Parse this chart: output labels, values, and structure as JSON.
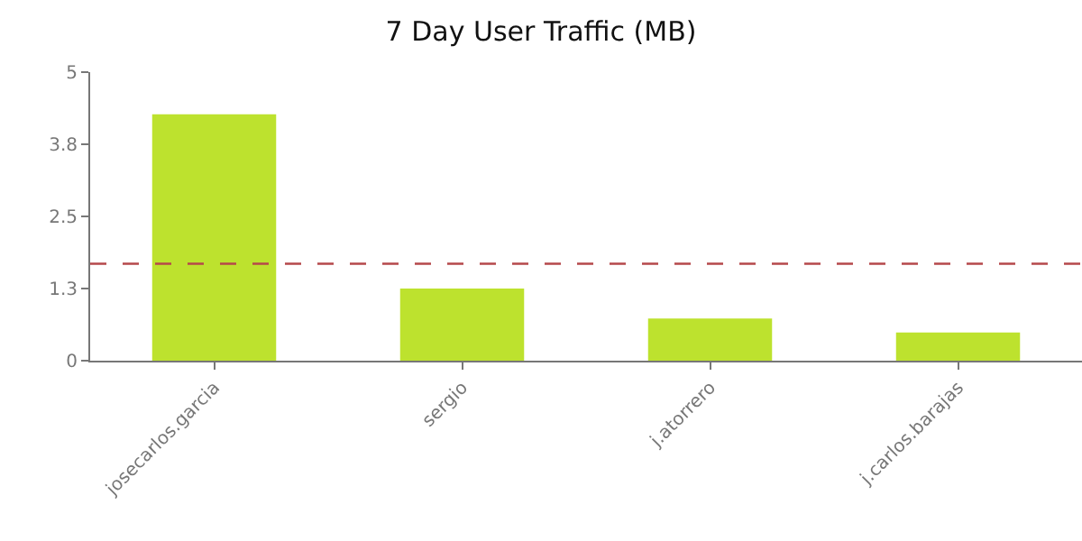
{
  "chart_data": {
    "type": "bar",
    "title": "7 Day User Traffic (MB)",
    "categories": [
      "josecarlos.garcia",
      "sergio",
      "j.atorrero",
      "j.carlos.barajas"
    ],
    "values": [
      4.27,
      1.25,
      0.73,
      0.49
    ],
    "color": "#bde22e",
    "ylim": [
      0,
      5
    ],
    "yticks": [
      0,
      {
        "value": 1.25,
        "label": "1.3"
      },
      2.5,
      {
        "value": 3.75,
        "label": "3.8"
      },
      5
    ],
    "ref_lines": [
      {
        "axis": "y",
        "value": 1.68,
        "color": "#b5484b",
        "line_style": "dashed"
      }
    ]
  }
}
